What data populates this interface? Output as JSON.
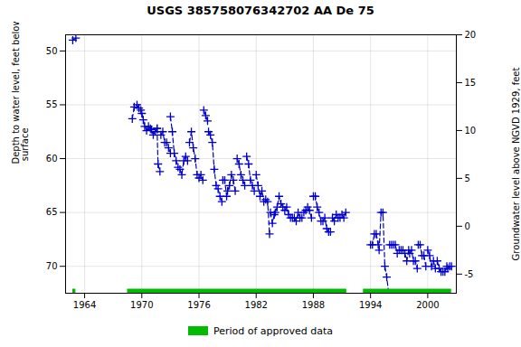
{
  "chart_data": {
    "type": "line",
    "title": "USGS 385758076342702 AA De  75",
    "ylabel": "Depth to water level, feet below land\n surface",
    "y2label": "Groundwater level above NGVD 1929, feet",
    "xlim": [
      1962.0,
      2003.0
    ],
    "xticks": [
      1964,
      1970,
      1976,
      1982,
      1988,
      1994,
      2000
    ],
    "ylim": [
      72.5,
      48.5
    ],
    "yticks": [
      50,
      55,
      60,
      65,
      70
    ],
    "y2lim": [
      -7,
      20
    ],
    "y2ticks": [
      -5,
      0,
      5,
      10,
      15,
      20
    ],
    "grid": true,
    "legend": "bottom",
    "x": [
      1962.75,
      1963.08,
      null,
      1969.0,
      1969.2,
      1969.5,
      1969.7,
      1969.9,
      null,
      1970.0,
      1970.15,
      1970.3,
      1970.5,
      1970.7,
      1970.9,
      null,
      1971.0,
      1971.2,
      1971.4,
      1971.6,
      null,
      1971.6,
      1971.7,
      1971.9,
      null,
      1972.0,
      1972.2,
      1972.4,
      1972.6,
      1972.8,
      1973.0,
      null,
      1973.0,
      1973.2,
      1973.4,
      1973.6,
      1973.8,
      null,
      1974.0,
      1974.2,
      1974.4,
      1974.6,
      1974.8,
      null,
      1975.0,
      1975.2,
      1975.4,
      1975.6,
      1975.8,
      null,
      1976.0,
      1976.2,
      1976.4,
      null,
      1976.5,
      1976.7,
      1976.9,
      null,
      1977.0,
      1977.2,
      1977.4,
      1977.6,
      1977.8,
      null,
      1978.0,
      1978.2,
      1978.4,
      null,
      1978.5,
      1978.7,
      1978.9,
      null,
      1979.0,
      1979.2,
      1979.4,
      1979.6,
      1979.8,
      null,
      1980.0,
      1980.2,
      1980.4,
      1980.6,
      1980.8,
      null,
      1981.0,
      1981.2,
      1981.4,
      1981.6,
      1981.8,
      null,
      1982.0,
      1982.2,
      1982.4,
      1982.6,
      1982.8,
      null,
      1983.0,
      1983.2,
      1983.4,
      null,
      1983.5,
      1983.7,
      1983.9,
      null,
      1984.0,
      1984.2,
      1984.4,
      1984.6,
      1984.8,
      null,
      1985.0,
      1985.2,
      1985.4,
      1985.6,
      1985.8,
      null,
      1986.0,
      1986.2,
      1986.4,
      1986.6,
      1986.8,
      null,
      1987.0,
      1987.2,
      1987.4,
      1987.6,
      1987.8,
      null,
      1988.0,
      1988.2,
      1988.4,
      1988.6,
      1988.8,
      null,
      1989.0,
      1989.2,
      1989.4,
      1989.6,
      1989.8,
      null,
      1990.0,
      1990.2,
      1990.4,
      1990.6,
      1990.8,
      null,
      1991.0,
      1991.2,
      1991.4,
      null,
      1994.0,
      1994.2,
      1994.4,
      1994.6,
      1994.8,
      null,
      1994.9,
      1995.1,
      1995.3,
      1995.5,
      1995.7,
      1995.9,
      null,
      1996.0,
      1996.2,
      1996.4,
      1996.6,
      1996.8,
      null,
      1997.0,
      1997.2,
      1997.4,
      1997.6,
      1997.8,
      1998.0,
      null,
      1998.1,
      1998.3,
      1998.5,
      1998.7,
      1998.9,
      null,
      1999.0,
      1999.2,
      1999.4,
      1999.6,
      1999.8,
      null,
      2000.0,
      2000.2,
      2000.4,
      2000.6,
      2000.8,
      null,
      2001.0,
      2001.2,
      2001.4,
      2001.6,
      2001.8,
      2002.0,
      null,
      2002.1,
      2002.3,
      2002.5
    ],
    "series": [
      {
        "color": "#0000cc",
        "marker": "plus",
        "line_style": "dashed",
        "values": [
          49.0,
          48.8,
          null,
          56.3,
          55.2,
          55.0,
          55.3,
          55.5,
          null,
          55.8,
          56.4,
          57.0,
          57.4,
          57.0,
          57.2,
          null,
          57.3,
          57.8,
          57.5,
          57.2,
          null,
          57.2,
          60.5,
          61.2,
          null,
          57.8,
          57.5,
          58.5,
          58.5,
          59.0,
          59.5,
          null,
          56.1,
          57.5,
          59.5,
          60.2,
          60.8,
          null,
          61.0,
          61.5,
          60.2,
          59.8,
          60.2,
          null,
          58.5,
          57.5,
          59.0,
          60.0,
          61.5,
          null,
          61.8,
          61.5,
          62.0,
          null,
          55.5,
          56.0,
          56.5,
          null,
          57.5,
          57.8,
          58.5,
          61.0,
          62.5,
          null,
          62.8,
          63.5,
          64.0,
          null,
          62.0,
          62.0,
          63.5,
          null,
          63.0,
          62.5,
          61.5,
          62.0,
          63.0,
          null,
          60.0,
          60.5,
          61.5,
          62.0,
          62.5,
          null,
          59.8,
          60.5,
          62.0,
          62.5,
          63.0,
          null,
          61.5,
          62.5,
          63.5,
          63.0,
          64.0,
          null,
          63.8,
          64.0,
          67.0,
          null,
          65.0,
          66.0,
          65.2,
          null,
          65.0,
          64.5,
          63.5,
          64.2,
          64.5,
          null,
          64.8,
          64.5,
          65.2,
          65.5,
          65.5,
          null,
          65.5,
          65.8,
          65.0,
          65.5,
          65.5,
          null,
          65.0,
          64.8,
          64.5,
          64.8,
          65.5,
          null,
          63.5,
          63.5,
          64.5,
          65.0,
          65.8,
          null,
          65.8,
          65.5,
          66.5,
          66.8,
          66.8,
          null,
          65.5,
          65.8,
          65.2,
          65.5,
          65.5,
          null,
          65.2,
          65.5,
          65.0,
          null,
          68.0,
          68.0,
          67.0,
          67.0,
          68.0,
          null,
          68.5,
          65.0,
          65.0,
          70.0,
          71.0,
          72.5,
          null,
          68.0,
          68.0,
          68.0,
          68.0,
          68.8,
          null,
          68.5,
          68.5,
          68.5,
          68.8,
          69.5,
          68.5,
          null,
          68.8,
          68.5,
          69.5,
          69.5,
          70.2,
          null,
          68.0,
          68.0,
          69.0,
          69.0,
          70.0,
          null,
          68.5,
          69.0,
          70.0,
          69.5,
          70.2,
          null,
          69.5,
          70.2,
          70.5,
          70.5,
          70.5,
          70.0,
          null,
          70.2,
          70.0,
          70.0
        ]
      }
    ],
    "approved_periods": [
      [
        1962.75,
        1963.08
      ],
      [
        1968.5,
        1991.5
      ],
      [
        1993.25,
        2002.5
      ]
    ],
    "approved_color": "#00bb00",
    "approved_label": "Period of approved data"
  }
}
